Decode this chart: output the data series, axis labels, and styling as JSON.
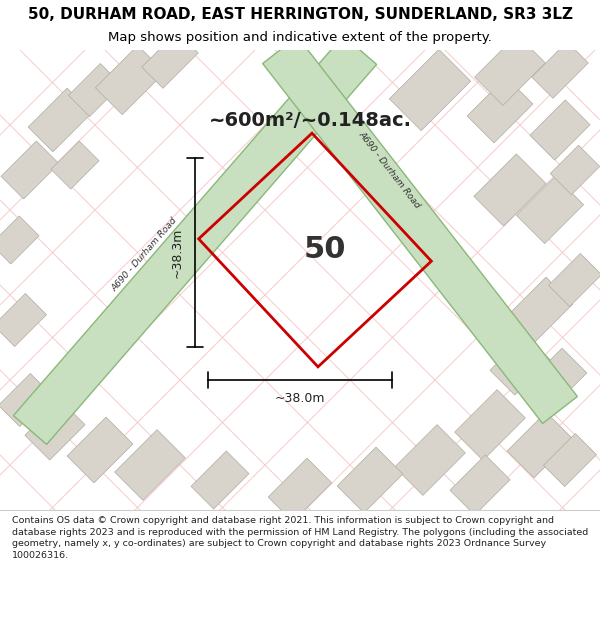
{
  "title_line1": "50, DURHAM ROAD, EAST HERRINGTON, SUNDERLAND, SR3 3LZ",
  "title_line2": "Map shows position and indicative extent of the property.",
  "area_text": "~600m²/~0.148ac.",
  "number_label": "50",
  "dim_height": "~38.3m",
  "dim_width": "~38.0m",
  "road_label": "A690 - Durham Road",
  "footer_text": "Contains OS data © Crown copyright and database right 2021. This information is subject to Crown copyright and database rights 2023 and is reproduced with the permission of HM Land Registry. The polygons (including the associated geometry, namely x, y co-ordinates) are subject to Crown copyright and database rights 2023 Ordnance Survey 100026316.",
  "bg_color": "#f0eeea",
  "map_bg": "#f0eeea",
  "grid_color_light": "#f5c5c5",
  "building_color": "#d8d4cc",
  "road_fill": "#c8dfc0",
  "road_stroke": "#8ab87a",
  "property_stroke": "#cc0000",
  "title_bg": "#ffffff",
  "footer_bg": "#ffffff"
}
